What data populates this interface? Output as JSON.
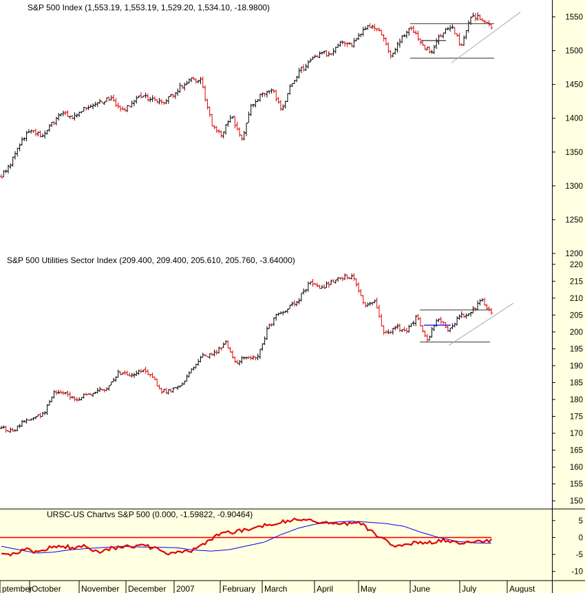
{
  "chart_data": [
    {
      "type": "ohlc",
      "title": "S&P 500 Index (1,553.19, 1,553.19, 1,529.20, 1,534.10, -18.9800)",
      "ylim": [
        1200,
        1575
      ],
      "ticks": [
        "1200",
        "1250",
        "1300",
        "1350",
        "1400",
        "1450",
        "1500",
        "1550"
      ],
      "anchors": [
        1315,
        1336,
        1366,
        1385,
        1372,
        1390,
        1408,
        1400,
        1411,
        1421,
        1424,
        1431,
        1409,
        1420,
        1433,
        1428,
        1422,
        1432,
        1447,
        1459,
        1455,
        1392,
        1374,
        1404,
        1368,
        1420,
        1434,
        1446,
        1414,
        1450,
        1472,
        1486,
        1495,
        1497,
        1513,
        1507,
        1526,
        1538,
        1526,
        1491,
        1520,
        1533,
        1511,
        1497,
        1525,
        1537,
        1505,
        1553,
        1549,
        1534
      ],
      "rectangle": {
        "top": 1540,
        "bottom": 1489,
        "mid": 1515
      },
      "trendline": {
        "from": 1482,
        "to": 1557
      },
      "grid": false
    },
    {
      "type": "ohlc",
      "title": "S&P 500 Utilities Sector Index (209.400, 209.400, 205.610, 205.760, -3.64000)",
      "ylim": [
        148,
        222
      ],
      "ticks": [
        "150",
        "155",
        "160",
        "165",
        "170",
        "175",
        "180",
        "185",
        "190",
        "195",
        "200",
        "205",
        "210",
        "215",
        "220"
      ],
      "anchors": [
        171.5,
        170.5,
        173.5,
        174.5,
        176,
        182.5,
        182,
        179.5,
        181.5,
        182.5,
        183.5,
        188,
        187.5,
        188.5,
        187.5,
        182.5,
        182.5,
        184.5,
        189.5,
        193,
        193.5,
        197,
        191,
        193,
        192,
        201,
        205.5,
        207,
        210,
        215,
        213,
        214.5,
        216,
        216.5,
        208,
        209,
        199,
        201.5,
        200,
        204.5,
        197.5,
        204.5,
        200.5,
        205,
        205,
        209.5,
        205.8
      ],
      "rectangle": {
        "top": 206.5,
        "bottom": 197,
        "mid": 202
      },
      "trendline": {
        "from": 196,
        "to": 208.5
      },
      "grid": false
    },
    {
      "type": "line",
      "title": "URSC-US Chartvs S&P 500 (0.000, -1.59822, -0.90464)",
      "ylim": [
        -12.5,
        8
      ],
      "ticks": [
        "-10",
        "-5",
        "0",
        "5"
      ],
      "series_values": [
        -4.2,
        -5,
        -3.6,
        -4.4,
        -3,
        -2.3,
        -3.2,
        -2.3,
        -4.2,
        -3.4,
        -2.7,
        -2.5,
        -2.4,
        -3.5,
        -4.9,
        -4.3,
        -3.7,
        -2.1,
        0.9,
        1.4,
        2.1,
        2.6,
        3.6,
        4.4,
        4.9,
        5.4,
        4.9,
        4.4,
        3.9,
        4.2,
        4.4,
        1.6,
        -0.8,
        -2.4,
        -1.8,
        -1.5,
        -1.6,
        -0.8,
        -1.5,
        -1.2,
        -1.4,
        -0.9
      ],
      "smooth_values": [
        -2.6,
        -3.6,
        -4.6,
        -4.3,
        -3.6,
        -3.2,
        -2.9,
        -2.6,
        -2.8,
        -2.9,
        -3,
        -3.7,
        -4,
        -3.6,
        -2.5,
        -1.4,
        0.9,
        2.8,
        4,
        4.5,
        4.8,
        4.5,
        4.1,
        3.3,
        1.5,
        0,
        -1.1,
        -1.6,
        -1.7
      ],
      "zero_line": 0,
      "grid": false
    }
  ],
  "months": [
    "ptember",
    "October",
    "November",
    "December",
    "2007",
    "February",
    "March",
    "April",
    "May",
    "June",
    "July",
    "August"
  ],
  "colors": {
    "up": "#000000",
    "down": "#e00000",
    "signal": "#0000ee",
    "zero_line": "#ff0000",
    "rs_line": "#e00000",
    "panel_bg": "#ffffe1",
    "axis_bg": "#ffffe1"
  }
}
